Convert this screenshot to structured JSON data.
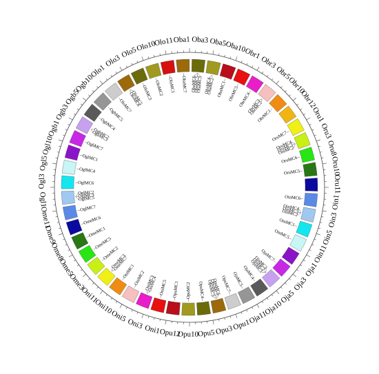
{
  "blocks": [
    {
      "label": "Oba1",
      "color": "#9c6a0a",
      "genes": [
        "ObaMC7"
      ]
    },
    {
      "label": "Oba3",
      "color": "#6b6b0a",
      "genes": [
        "ObaMC6",
        "ObaMC5",
        "ObaMC3"
      ]
    },
    {
      "label": "Oba5",
      "color": "#a09a20",
      "genes": [
        "ObaMC4",
        "ObaMC2"
      ]
    },
    {
      "label": "Oba10",
      "color": "#b80f1a",
      "genes": [
        "ObaMC1"
      ]
    },
    {
      "label": "Obr1",
      "color": "#e81010",
      "genes": [
        "ObrMC5"
      ]
    },
    {
      "label": "Obr3",
      "color": "#e81ec8",
      "genes": [
        "ObrMC4"
      ]
    },
    {
      "label": "Obr5",
      "color": "#f6c0c0",
      "genes": [
        "ObrMC3",
        "ObrMC2"
      ]
    },
    {
      "label": "Obr10",
      "color": "#f08c14",
      "genes": [
        "ObrMC1"
      ]
    },
    {
      "label": "Obr12",
      "color": "#f0b414",
      "genes": []
    },
    {
      "label": "Oru1",
      "color": "#f0f014",
      "genes": [
        "OruMC7"
      ]
    },
    {
      "label": "Oru3",
      "color": "#c8f014",
      "genes": [
        "OruMC4",
        "OruMC3",
        "OruMC2"
      ]
    },
    {
      "label": "Oru8",
      "color": "#28e614",
      "genes": [
        "OruMC6"
      ]
    },
    {
      "label": "Oru10",
      "color": "#287814",
      "genes": [
        "OruMC5"
      ]
    },
    {
      "label": "Oru11",
      "color": "#0a0aa0",
      "genes": []
    },
    {
      "label": "Oin1",
      "color": "#5a8ae6",
      "genes": [
        "OinMC6"
      ]
    },
    {
      "label": "Oin3",
      "color": "#a0c8f0",
      "genes": [
        "OinMC4",
        "OinMC3",
        "OinMC2"
      ]
    },
    {
      "label": "Oin5",
      "color": "#14e6f0",
      "genes": [
        "OinMC1"
      ]
    },
    {
      "label": "Oin11",
      "color": "#c8f6f6",
      "genes": [
        "OinMC5"
      ]
    },
    {
      "label": "Oja1",
      "color": "#8c14c8",
      "genes": []
    },
    {
      "label": "Oja3",
      "color": "#c828e6",
      "genes": [
        "OjaMC7"
      ]
    },
    {
      "label": "Oja5",
      "color": "#c8a0f0",
      "genes": [
        "OjaMC3",
        "OjaMC2",
        "OjaMC1"
      ]
    },
    {
      "label": "Oja10",
      "color": "#5a5a5a",
      "genes": [
        "OjaMC4"
      ]
    },
    {
      "label": "Oja11",
      "color": "#969696",
      "genes": [
        "OjaMC5"
      ]
    },
    {
      "label": "Opu1",
      "color": "#cdcdcd",
      "genes": [
        "OpuMC7"
      ]
    },
    {
      "label": "Opu3",
      "color": "#9c6a0a",
      "genes": [
        "OpuMC6",
        "OpuMC5",
        "OpuMC3"
      ]
    },
    {
      "label": "Opu5",
      "color": "#6b6b0a",
      "genes": [
        "OpuMC4"
      ]
    },
    {
      "label": "Opu10",
      "color": "#a09a20",
      "genes": [
        "OpuMC2"
      ]
    },
    {
      "label": "Opu12",
      "color": "#b80f1a",
      "genes": [
        "OpuMC1"
      ]
    },
    {
      "label": "Oni1",
      "color": "#e81010",
      "genes": [
        "OniMC5"
      ]
    },
    {
      "label": "Oni3",
      "color": "#e81ec8",
      "genes": [
        "OniMC4",
        "OniMC3"
      ]
    },
    {
      "label": "Oni5",
      "color": "#f6c0c0",
      "genes": [
        "OniMC2"
      ]
    },
    {
      "label": "Oni10",
      "color": "#f08c14",
      "genes": [
        "OniMC1"
      ]
    },
    {
      "label": "Oni11",
      "color": "#f0f014",
      "genes": [
        "OmeMC7",
        "OmeMC3"
      ]
    },
    {
      "label": "Ome3",
      "color": "#c8f014",
      "genes": [
        "OmeMC2"
      ]
    },
    {
      "label": "Ome5",
      "color": "#28e614",
      "genes": [
        "OmeMC5"
      ]
    },
    {
      "label": "Ome8",
      "color": "#287814",
      "genes": [
        "OmeMC1"
      ]
    },
    {
      "label": "Ome9",
      "color": "#0a0aa0",
      "genes": [
        "OmeMC6"
      ]
    },
    {
      "label": "Ome11",
      "color": "#5a8ae6",
      "genes": [
        "OglMC7"
      ]
    },
    {
      "label": "Ogl1",
      "color": "#a0c8f0",
      "genes": [
        "OglMC5",
        "OglMC3",
        "OglMC2"
      ]
    },
    {
      "label": "Ogl3",
      "color": "#14e6f0",
      "genes": [
        "OglMC6"
      ]
    },
    {
      "label": "Ogl5",
      "color": "#c8f6f6",
      "genes": [
        "OglMC4"
      ]
    },
    {
      "label": "Ogl10",
      "color": "#8c14c8",
      "genes": [
        "OglMC1"
      ]
    },
    {
      "label": "Ogb1",
      "color": "#c828e6",
      "genes": [
        "OgbMC7"
      ]
    },
    {
      "label": "Ogb3",
      "color": "#c8a0f0",
      "genes": [
        "OgbMC3",
        "OgbMC2"
      ]
    },
    {
      "label": "Ogb5",
      "color": "#5a5a5a",
      "genes": [
        "OgbMC4"
      ]
    },
    {
      "label": "Ogb10",
      "color": "#969696",
      "genes": [
        "OgbMC5"
      ]
    },
    {
      "label": "Olo1",
      "color": "#cdcdcd",
      "genes": [
        "OloMC7"
      ]
    },
    {
      "label": "Olo3",
      "color": "#9c6a0a",
      "genes": [
        "OloMC6",
        "OloMC5"
      ]
    },
    {
      "label": "Olo5",
      "color": "#6b6b0a",
      "genes": [
        "OloMC3"
      ]
    },
    {
      "label": "Olo10",
      "color": "#a09a20",
      "genes": [
        "OloMC2"
      ]
    },
    {
      "label": "Olo11",
      "color": "#d80f0f",
      "genes": [
        "OloMC1"
      ]
    }
  ]
}
